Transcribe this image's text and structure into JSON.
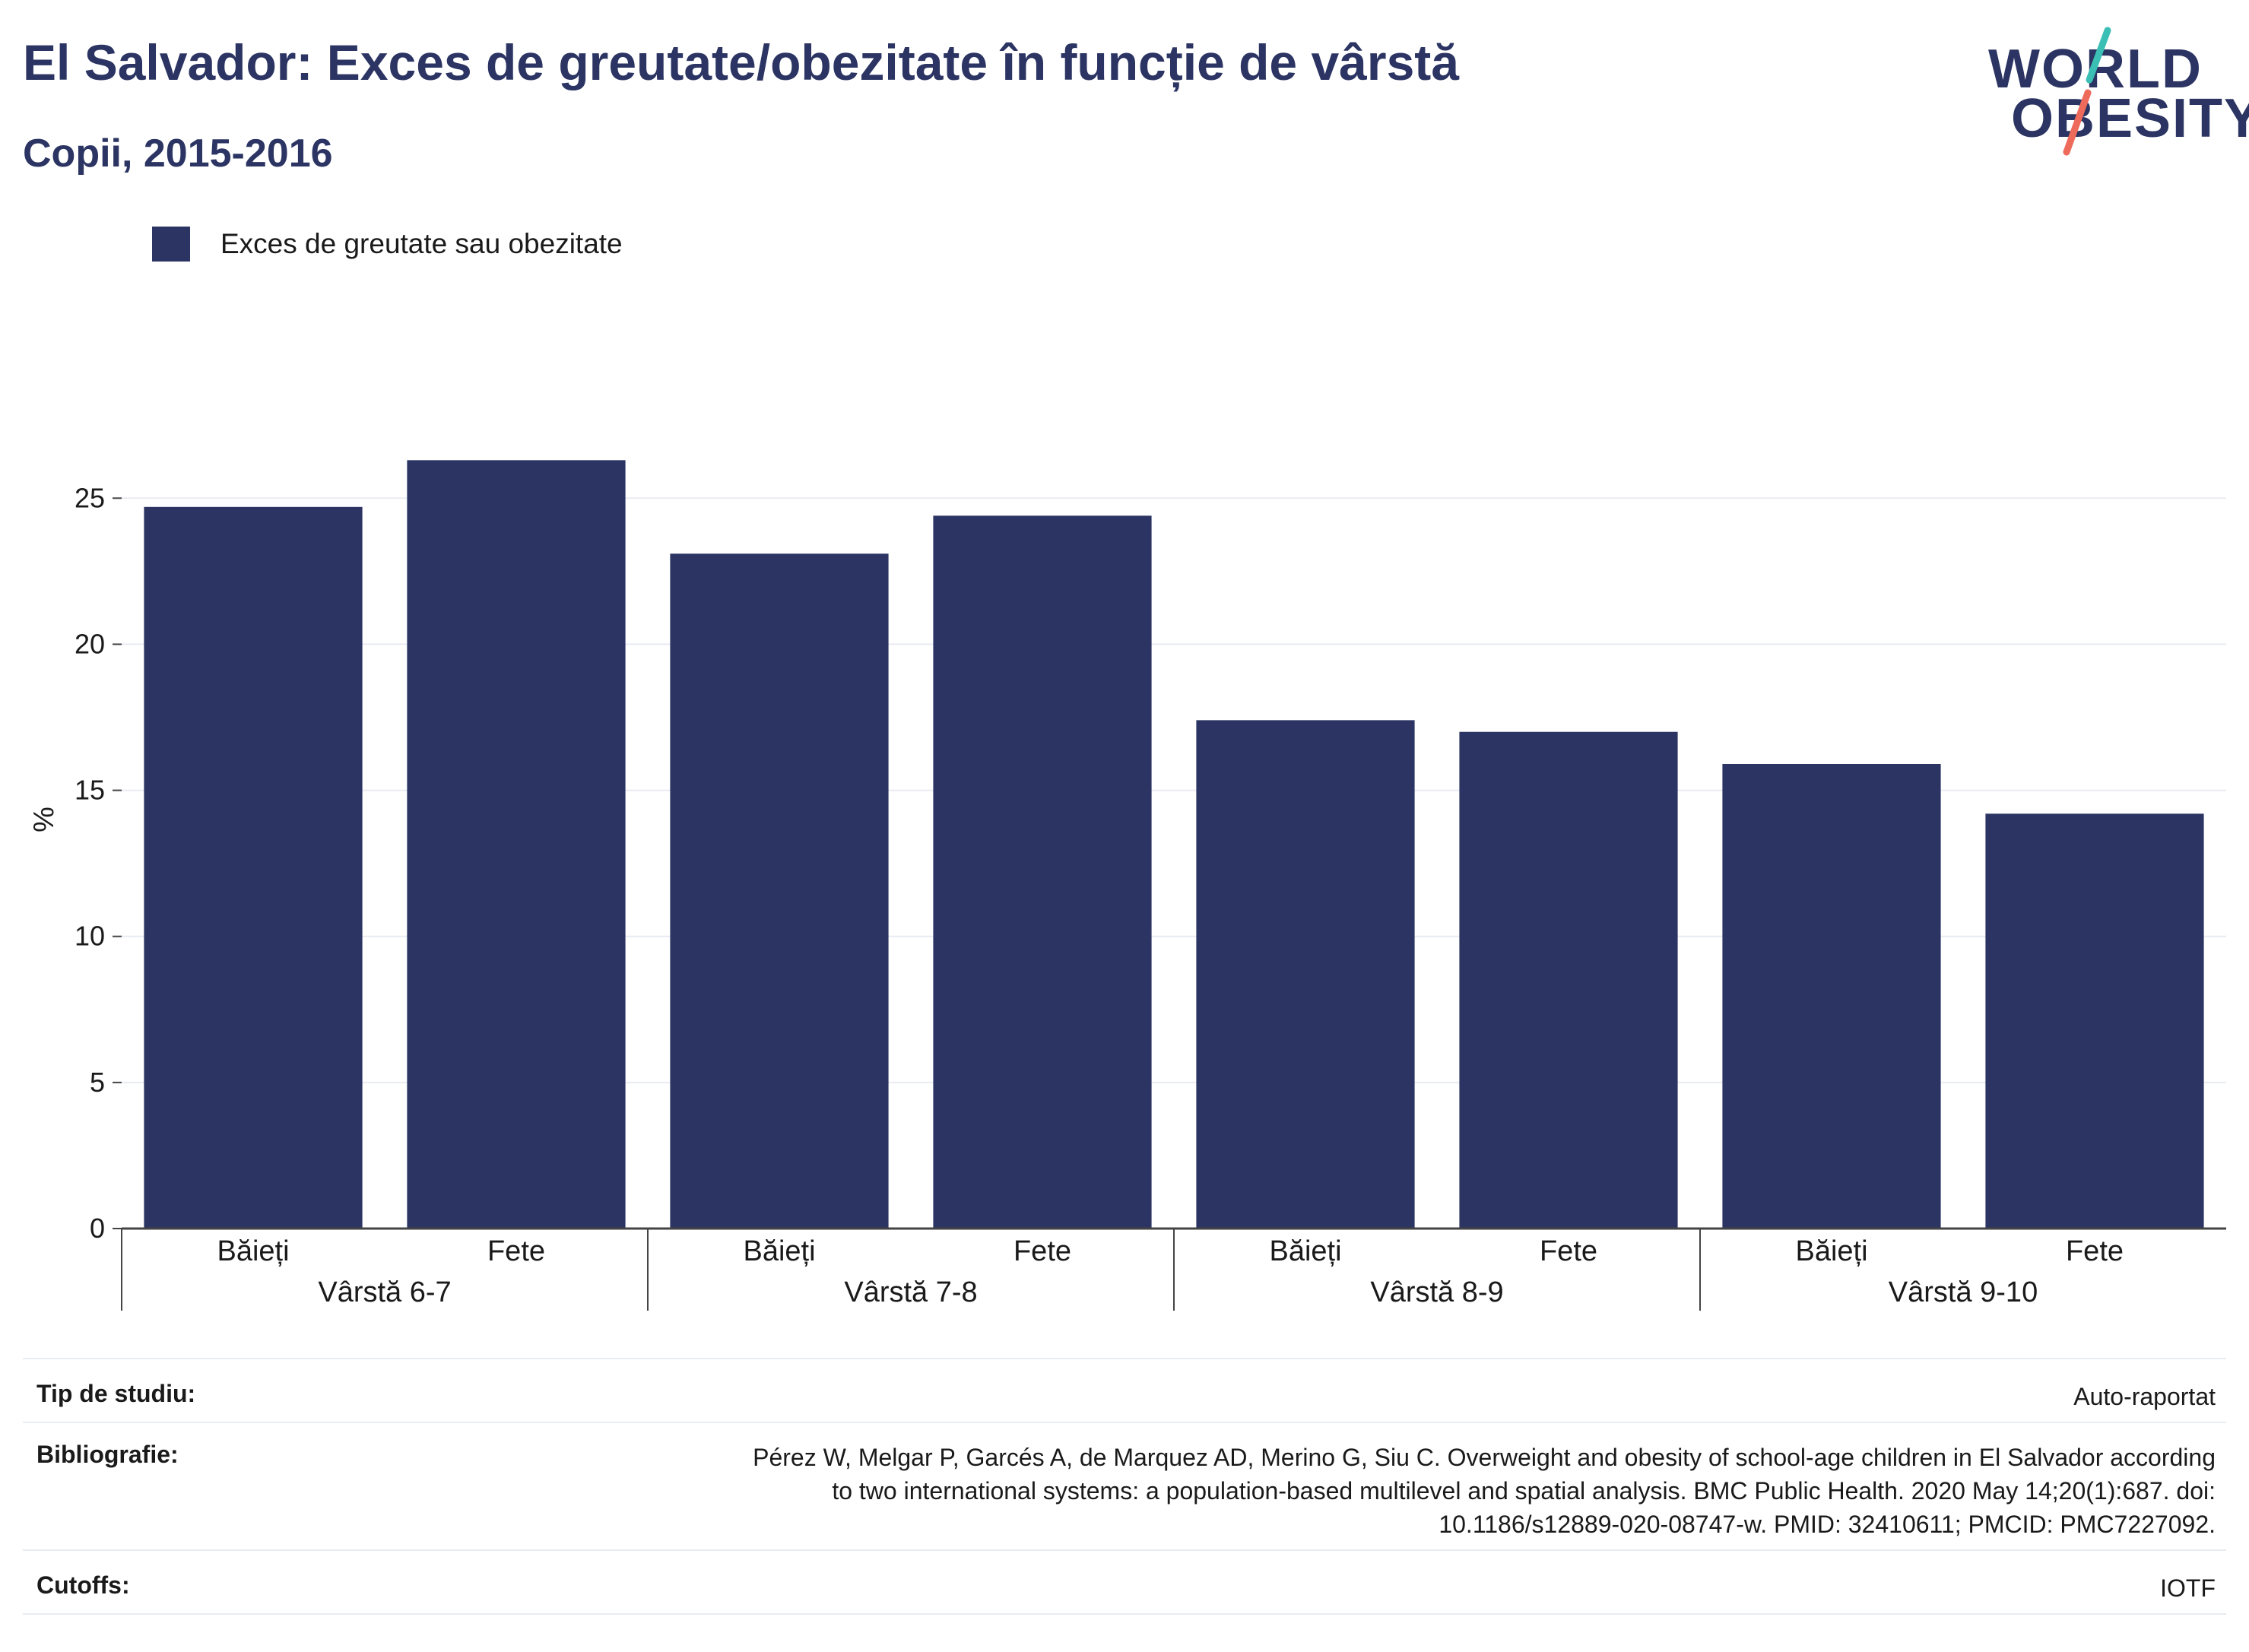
{
  "header": {
    "title": "El Salvador: Exces de greutate/obezitate în funcție de vârstă",
    "subtitle": "Copii, 2015-2016"
  },
  "logo": {
    "line1": "WORLD",
    "line2": "OBESITY",
    "accent_teal": "#3bbfb5",
    "accent_coral": "#ee6b5b"
  },
  "colors": {
    "bar": "#2b3462",
    "title": "#2b3462",
    "grid": "#e9ebf3",
    "axis": "#444444"
  },
  "chart_data": {
    "type": "bar",
    "legend": [
      "Exces de greutate sau obezitate"
    ],
    "legend_position": "top-left",
    "ylabel": "%",
    "ylim": [
      0,
      28
    ],
    "yticks": [
      0,
      5,
      10,
      15,
      20,
      25
    ],
    "grid": true,
    "groups": [
      "Vârstă 6-7",
      "Vârstă 7-8",
      "Vârstă 8-9",
      "Vârstă 9-10"
    ],
    "categories": [
      "Băieți",
      "Fete",
      "Băieți",
      "Fete",
      "Băieți",
      "Fete",
      "Băieți",
      "Fete"
    ],
    "series": [
      {
        "name": "Exces de greutate sau obezitate",
        "values": [
          24.7,
          26.3,
          23.1,
          24.4,
          17.4,
          17.0,
          15.9,
          14.2
        ]
      }
    ]
  },
  "info": {
    "study_type_label": "Tip de studiu:",
    "study_type_value": "Auto-raportat",
    "bibliography_label": "Bibliografie:",
    "bibliography_lines": [
      "Pérez W, Melgar P, Garcés A, de Marquez AD, Merino G, Siu C. Overweight and obesity of school-age children in El Salvador according",
      "to two international systems: a population-based multilevel and spatial analysis. BMC Public Health. 2020 May 14;20(1):687. doi:",
      "10.1186/s12889-020-08747-w. PMID: 32410611; PMCID: PMC7227092."
    ],
    "cutoffs_label": "Cutoffs:",
    "cutoffs_value": "IOTF"
  }
}
